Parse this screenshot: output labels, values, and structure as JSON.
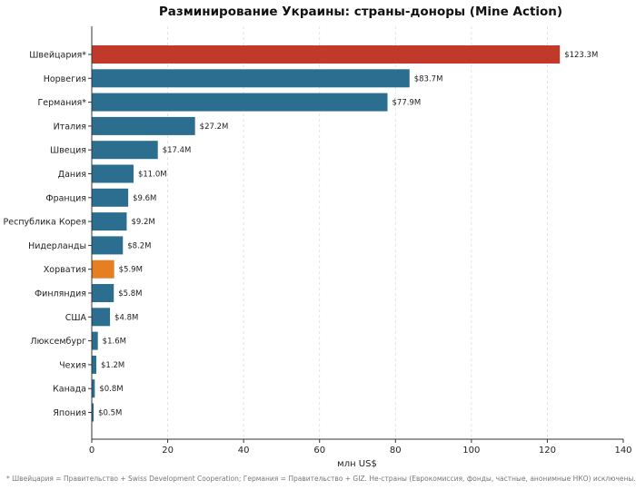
{
  "chart_data": {
    "type": "bar",
    "orientation": "horizontal",
    "title": "Разминирование Украины: страны-доноры (Mine Action)",
    "xlabel": "млн US$",
    "ylabel": "",
    "xlim": [
      0,
      140
    ],
    "xticks": [
      0,
      20,
      40,
      60,
      80,
      100,
      120,
      140
    ],
    "grid": "x-dashed",
    "categories": [
      "Швейцария*",
      "Норвегия",
      "Германия*",
      "Италия",
      "Швеция",
      "Дания",
      "Франция",
      "Республика Корея",
      "Нидерланды",
      "Хорватия",
      "Финляндия",
      "США",
      "Люксембург",
      "Чехия",
      "Канада",
      "Япония"
    ],
    "values": [
      123.3,
      83.7,
      77.9,
      27.2,
      17.4,
      11.0,
      9.6,
      9.2,
      8.2,
      5.9,
      5.8,
      4.8,
      1.6,
      1.2,
      0.8,
      0.5
    ],
    "value_labels": [
      "$123.3M",
      "$83.7M",
      "$77.9M",
      "$27.2M",
      "$17.4M",
      "$11.0M",
      "$9.6M",
      "$9.2M",
      "$8.2M",
      "$5.9M",
      "$5.8M",
      "$4.8M",
      "$1.6M",
      "$1.2M",
      "$0.8M",
      "$0.5M"
    ],
    "colors": [
      "#c0392b",
      "#2c6e8f",
      "#2c6e8f",
      "#2c6e8f",
      "#2c6e8f",
      "#2c6e8f",
      "#2c6e8f",
      "#2c6e8f",
      "#2c6e8f",
      "#e67e22",
      "#2c6e8f",
      "#2c6e8f",
      "#2c6e8f",
      "#2c6e8f",
      "#2c6e8f",
      "#2c6e8f"
    ]
  },
  "footnote": "* Швейцария = Правительство + Swiss Development Cooperation; Германия = Правительство + GIZ. Не-страны (Еврокомиссия, фонды, частные, анонимные НКО) исключены."
}
